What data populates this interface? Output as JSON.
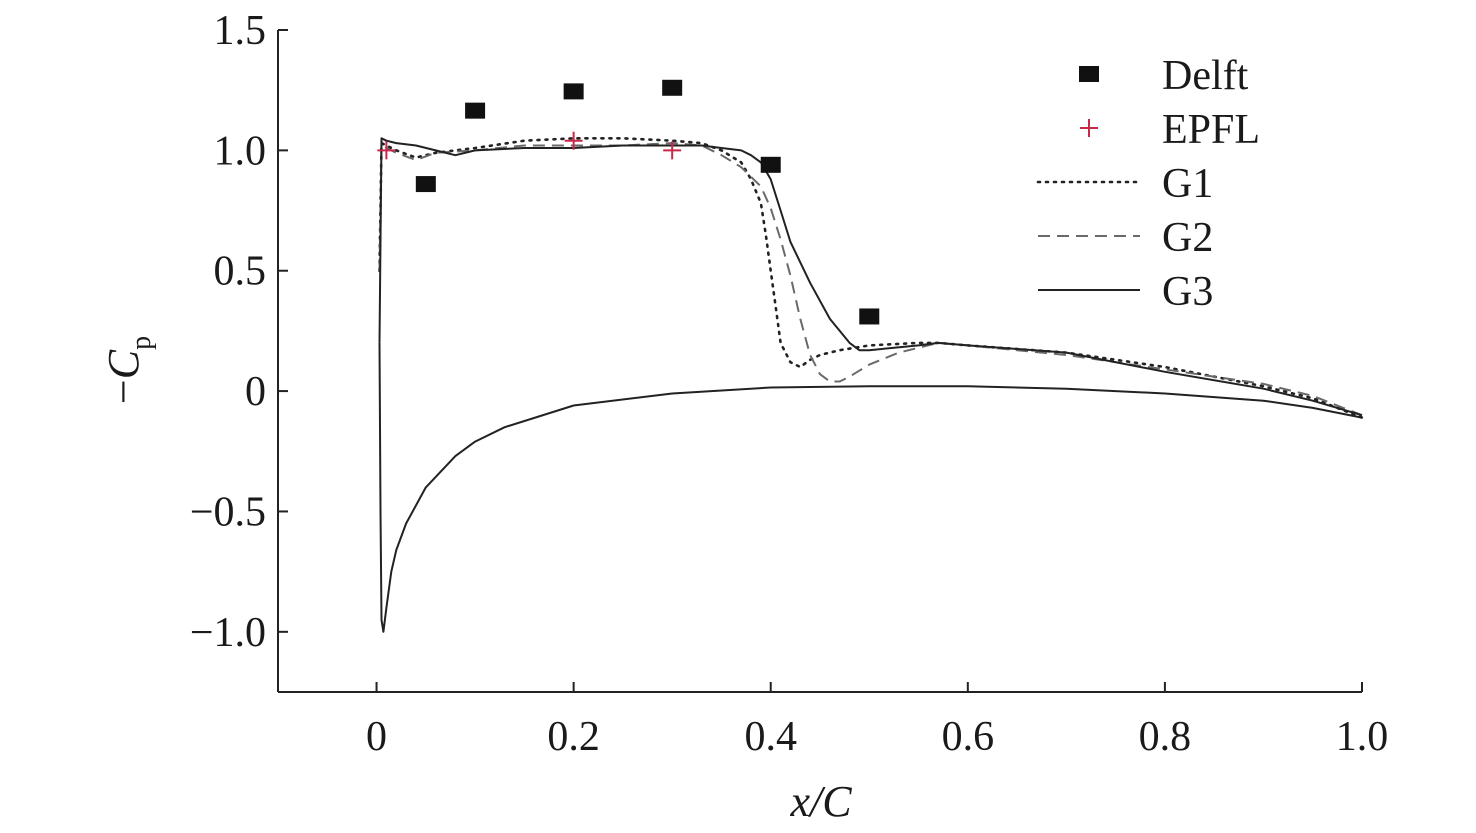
{
  "chart_data": {
    "type": "line",
    "xlabel": "x/C",
    "ylabel": "−C̅p",
    "ylabel_parts": {
      "prefix": "−",
      "symbol": "C",
      "subscript": "p"
    },
    "xlim": [
      -0.1,
      1.0
    ],
    "ylim": [
      -1.25,
      1.5
    ],
    "x_ticks": [
      0,
      0.2,
      0.4,
      0.6,
      0.8,
      1.0
    ],
    "x_tick_labels": [
      "0",
      "0.2",
      "0.4",
      "0.6",
      "0.8",
      "1.0"
    ],
    "y_ticks": [
      1.5,
      1.0,
      0.5,
      0,
      -0.5,
      -1.0
    ],
    "y_tick_labels": [
      "1.5",
      "1.0",
      "0.5",
      "0",
      "−0.5",
      "−1.0"
    ],
    "grid": false,
    "legend_position": "top-right",
    "series": [
      {
        "name": "Delft",
        "kind": "marker",
        "marker": "square",
        "color": "#111111",
        "x": [
          0.05,
          0.1,
          0.2,
          0.3,
          0.4,
          0.5
        ],
        "y": [
          0.86,
          1.165,
          1.245,
          1.26,
          0.94,
          0.31
        ]
      },
      {
        "name": "EPFL",
        "kind": "marker",
        "marker": "plus",
        "color": "#c8284a",
        "x": [
          0.01,
          0.2,
          0.3
        ],
        "y": [
          1.0,
          1.04,
          1.0
        ]
      },
      {
        "name": "G1",
        "kind": "line",
        "dash": "dotted",
        "color": "#222222",
        "x": [
          0.003,
          0.005,
          0.01,
          0.02,
          0.04,
          0.06,
          0.1,
          0.15,
          0.2,
          0.25,
          0.3,
          0.33,
          0.35,
          0.37,
          0.38,
          0.39,
          0.395,
          0.4,
          0.405,
          0.41,
          0.42,
          0.43,
          0.44,
          0.45,
          0.47,
          0.5,
          0.55,
          0.57,
          0.6,
          0.7,
          0.8,
          0.9,
          0.95,
          1.0
        ],
        "y": [
          0.5,
          1.03,
          1.02,
          1.0,
          0.97,
          0.99,
          1.01,
          1.04,
          1.05,
          1.05,
          1.04,
          1.03,
          1.0,
          0.95,
          0.88,
          0.78,
          0.65,
          0.5,
          0.35,
          0.2,
          0.12,
          0.1,
          0.13,
          0.15,
          0.17,
          0.19,
          0.2,
          0.2,
          0.19,
          0.16,
          0.1,
          0.02,
          -0.03,
          -0.11
        ]
      },
      {
        "name": "G2",
        "kind": "line",
        "dash": "dashed",
        "color": "#6a6a6a",
        "x": [
          0.003,
          0.005,
          0.01,
          0.02,
          0.04,
          0.06,
          0.1,
          0.15,
          0.2,
          0.25,
          0.3,
          0.33,
          0.35,
          0.37,
          0.39,
          0.4,
          0.41,
          0.42,
          0.43,
          0.44,
          0.45,
          0.46,
          0.47,
          0.48,
          0.5,
          0.53,
          0.57,
          0.6,
          0.7,
          0.8,
          0.9,
          0.95,
          1.0
        ],
        "y": [
          0.5,
          1.03,
          1.01,
          0.99,
          0.96,
          0.99,
          1.0,
          1.02,
          1.02,
          1.02,
          1.03,
          1.02,
          0.98,
          0.93,
          0.85,
          0.76,
          0.63,
          0.48,
          0.3,
          0.15,
          0.07,
          0.04,
          0.04,
          0.06,
          0.11,
          0.16,
          0.2,
          0.19,
          0.15,
          0.09,
          0.03,
          -0.02,
          -0.1
        ]
      },
      {
        "name": "G3",
        "kind": "line",
        "dash": "solid",
        "color": "#222222",
        "x": [
          0.003,
          0.005,
          0.01,
          0.02,
          0.04,
          0.06,
          0.08,
          0.1,
          0.15,
          0.2,
          0.25,
          0.3,
          0.33,
          0.35,
          0.37,
          0.38,
          0.39,
          0.4,
          0.41,
          0.42,
          0.44,
          0.46,
          0.48,
          0.49,
          0.5,
          0.55,
          0.57,
          0.6,
          0.7,
          0.8,
          0.9,
          0.95,
          1.0
        ],
        "y": [
          0.2,
          1.05,
          1.04,
          1.03,
          1.02,
          1.0,
          0.98,
          1.0,
          1.01,
          1.01,
          1.02,
          1.02,
          1.02,
          1.01,
          1.0,
          0.98,
          0.95,
          0.88,
          0.75,
          0.62,
          0.45,
          0.3,
          0.2,
          0.17,
          0.17,
          0.19,
          0.2,
          0.19,
          0.16,
          0.08,
          0.01,
          -0.04,
          -0.1
        ]
      },
      {
        "name": "",
        "kind": "line",
        "dash": "solid",
        "color": "#222222",
        "x": [
          0.003,
          0.004,
          0.005,
          0.007,
          0.01,
          0.015,
          0.02,
          0.03,
          0.05,
          0.08,
          0.1,
          0.13,
          0.2,
          0.3,
          0.4,
          0.5,
          0.6,
          0.7,
          0.8,
          0.9,
          0.95,
          1.0
        ],
        "y": [
          0.2,
          -0.5,
          -0.95,
          -1.0,
          -0.9,
          -0.75,
          -0.66,
          -0.55,
          -0.4,
          -0.27,
          -0.21,
          -0.15,
          -0.06,
          -0.01,
          0.015,
          0.02,
          0.02,
          0.01,
          -0.01,
          -0.04,
          -0.07,
          -0.11
        ]
      }
    ]
  }
}
